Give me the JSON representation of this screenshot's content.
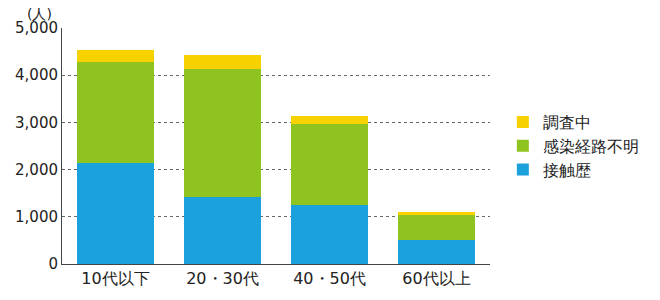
{
  "chart_data": {
    "type": "bar",
    "stacked": true,
    "y_label": "(人)",
    "categories": [
      "10代以下",
      "20・30代",
      "40・50代",
      "60代以上"
    ],
    "series": [
      {
        "name": "接触歴",
        "color": "#1ba1dc",
        "values": [
          2150,
          1430,
          1260,
          500
        ]
      },
      {
        "name": "感染経路不明",
        "color": "#8fc31f",
        "values": [
          2140,
          2700,
          1710,
          530
        ]
      },
      {
        "name": "調査中",
        "color": "#f8d100",
        "values": [
          240,
          300,
          170,
          70
        ]
      }
    ],
    "ylim": [
      0,
      5000
    ],
    "yticks": [
      0,
      {
        "value": 1000,
        "label": "1,000"
      },
      {
        "value": 2000,
        "label": "2,000"
      },
      {
        "value": 3000,
        "label": "3,000"
      },
      {
        "value": 4000,
        "label": "4,000"
      },
      {
        "value": 5000,
        "label": "5,000"
      }
    ],
    "grid": true,
    "legend": "right"
  }
}
